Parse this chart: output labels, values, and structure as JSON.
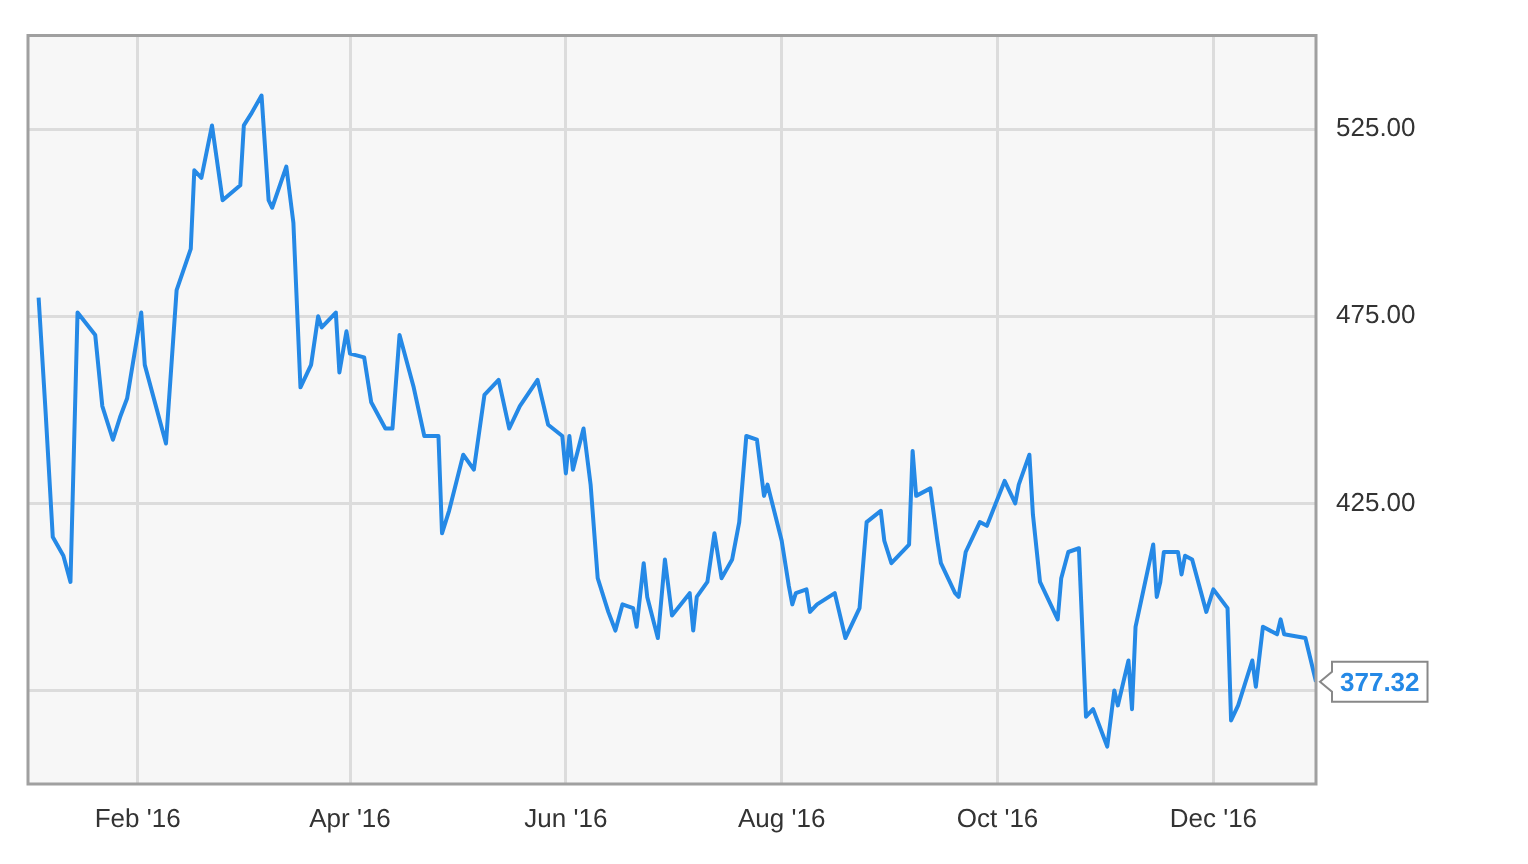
{
  "chart_data": {
    "type": "line",
    "x": [
      "2016-01-04",
      "2016-01-06",
      "2016-01-08",
      "2016-01-11",
      "2016-01-13",
      "2016-01-15",
      "2016-01-20",
      "2016-01-22",
      "2016-01-25",
      "2016-01-27",
      "2016-01-29",
      "2016-02-02",
      "2016-02-03",
      "2016-02-09",
      "2016-02-12",
      "2016-02-16",
      "2016-02-17",
      "2016-02-19",
      "2016-02-22",
      "2016-02-25",
      "2016-03-01",
      "2016-03-02",
      "2016-03-04",
      "2016-03-07",
      "2016-03-09",
      "2016-03-10",
      "2016-03-14",
      "2016-03-16",
      "2016-03-18",
      "2016-03-21",
      "2016-03-23",
      "2016-03-24",
      "2016-03-28",
      "2016-03-29",
      "2016-03-31",
      "2016-04-01",
      "2016-04-05",
      "2016-04-07",
      "2016-04-11",
      "2016-04-13",
      "2016-04-15",
      "2016-04-19",
      "2016-04-22",
      "2016-04-26",
      "2016-04-27",
      "2016-04-29",
      "2016-05-03",
      "2016-05-06",
      "2016-05-09",
      "2016-05-10",
      "2016-05-13",
      "2016-05-16",
      "2016-05-19",
      "2016-05-24",
      "2016-05-27",
      "2016-05-31",
      "2016-06-01",
      "2016-06-02",
      "2016-06-03",
      "2016-06-06",
      "2016-06-08",
      "2016-06-10",
      "2016-06-13",
      "2016-06-15",
      "2016-06-17",
      "2016-06-20",
      "2016-06-21",
      "2016-06-23",
      "2016-06-24",
      "2016-06-27",
      "2016-06-29",
      "2016-07-01",
      "2016-07-06",
      "2016-07-07",
      "2016-07-08",
      "2016-07-11",
      "2016-07-13",
      "2016-07-15",
      "2016-07-18",
      "2016-07-20",
      "2016-07-22",
      "2016-07-25",
      "2016-07-27",
      "2016-07-28",
      "2016-08-01",
      "2016-08-03",
      "2016-08-04",
      "2016-08-05",
      "2016-08-08",
      "2016-08-09",
      "2016-08-11",
      "2016-08-16",
      "2016-08-19",
      "2016-08-23",
      "2016-08-25",
      "2016-08-29",
      "2016-08-30",
      "2016-09-01",
      "2016-09-06",
      "2016-09-07",
      "2016-09-08",
      "2016-09-12",
      "2016-09-14",
      "2016-09-15",
      "2016-09-19",
      "2016-09-20",
      "2016-09-22",
      "2016-09-26",
      "2016-09-28",
      "2016-10-03",
      "2016-10-05",
      "2016-10-06",
      "2016-10-07",
      "2016-10-10",
      "2016-10-11",
      "2016-10-13",
      "2016-10-18",
      "2016-10-19",
      "2016-10-21",
      "2016-10-24",
      "2016-10-26",
      "2016-10-28",
      "2016-11-01",
      "2016-11-03",
      "2016-11-04",
      "2016-11-07",
      "2016-11-08",
      "2016-11-09",
      "2016-11-14",
      "2016-11-15",
      "2016-11-16",
      "2016-11-17",
      "2016-11-21",
      "2016-11-22",
      "2016-11-23",
      "2016-11-25",
      "2016-11-29",
      "2016-12-01",
      "2016-12-05",
      "2016-12-06",
      "2016-12-08",
      "2016-12-12",
      "2016-12-13",
      "2016-12-15",
      "2016-12-19",
      "2016-12-20",
      "2016-12-21",
      "2016-12-27",
      "2016-12-30"
    ],
    "series": [
      {
        "color": "#2589e6",
        "values": [
          480,
          449,
          416,
          411,
          404,
          476,
          470,
          451,
          442,
          448,
          453,
          476,
          462,
          441,
          482,
          493,
          514,
          512,
          526,
          506,
          510,
          526,
          529,
          534,
          506,
          504,
          515,
          500,
          456,
          462,
          475,
          472,
          476,
          460,
          471,
          465,
          464,
          452,
          445,
          445,
          470,
          456,
          443,
          443,
          417,
          423,
          438,
          434,
          454,
          455,
          458,
          445,
          451,
          458,
          446,
          443,
          433,
          443,
          434,
          445,
          430,
          405,
          396,
          391,
          398,
          397,
          392,
          409,
          400,
          389,
          410,
          395,
          401,
          391,
          400,
          404,
          417,
          405,
          410,
          420,
          443,
          442,
          427,
          430,
          415,
          403,
          398,
          401,
          402,
          396,
          398,
          401,
          389,
          397,
          420,
          423,
          415,
          409,
          414,
          439,
          427,
          429,
          415,
          409,
          401,
          400,
          412,
          420,
          419,
          431,
          427,
          425,
          430,
          438,
          422,
          404,
          394,
          405,
          412,
          413,
          368,
          370,
          360,
          375,
          371,
          383,
          370,
          392,
          414,
          400,
          404,
          412,
          412,
          406,
          411,
          410,
          396,
          402,
          397,
          367,
          371,
          383,
          376,
          392,
          390,
          394,
          390,
          389,
          377.32
        ]
      }
    ],
    "xlim": [
      "2016-01-01",
      "2016-12-30"
    ],
    "xticks": [
      {
        "value": "2016-02-01",
        "label": "Feb '16"
      },
      {
        "value": "2016-04-01",
        "label": "Apr '16"
      },
      {
        "value": "2016-06-01",
        "label": "Jun '16"
      },
      {
        "value": "2016-08-01",
        "label": "Aug '16"
      },
      {
        "value": "2016-10-01",
        "label": "Oct '16"
      },
      {
        "value": "2016-12-01",
        "label": "Dec '16"
      }
    ],
    "ylim": [
      350,
      550
    ],
    "yticks": [
      {
        "value": 375,
        "label": null
      },
      {
        "value": 425,
        "label": "425.00"
      },
      {
        "value": 475,
        "label": "475.00"
      },
      {
        "value": 525,
        "label": "525.00"
      }
    ],
    "annotations": [
      {
        "text": "377.32",
        "x": "2016-12-30",
        "y": 377.32
      }
    ],
    "grid": true,
    "marker": "none",
    "line_style": "solid"
  }
}
